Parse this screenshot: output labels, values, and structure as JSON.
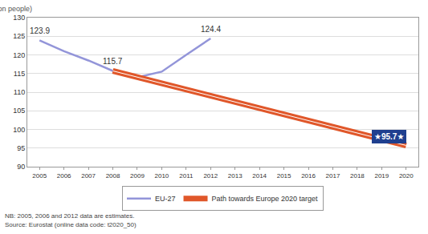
{
  "chart_data": {
    "type": "line",
    "y_label": "(million people)",
    "series": [
      {
        "name": "EU-27",
        "color": "#9395d9",
        "line_style": "solid",
        "x": [
          2005,
          2006,
          2007,
          2008,
          2009,
          2010,
          2011,
          2012
        ],
        "values": [
          123.9,
          121.0,
          118.5,
          115.7,
          114.0,
          115.5,
          120.0,
          124.4
        ]
      },
      {
        "name": "Path towards Europe 2020 target",
        "color": "#e0572a",
        "line_style": "double",
        "x": [
          2008,
          2020
        ],
        "values": [
          115.7,
          95.7
        ]
      }
    ],
    "annotations": [
      {
        "x": 2005,
        "y": 123.9,
        "text": "123.9"
      },
      {
        "x": 2008,
        "y": 115.7,
        "text": "115.7"
      },
      {
        "x": 2012,
        "y": 124.4,
        "text": "124.4"
      }
    ],
    "target": {
      "x": 2020,
      "y": 95.7,
      "text": "★95.7★",
      "color": "#1f3f8f"
    },
    "xlim": [
      2004.5,
      2020.5
    ],
    "xticks": [
      2005,
      2006,
      2007,
      2008,
      2009,
      2010,
      2011,
      2012,
      2013,
      2014,
      2015,
      2016,
      2017,
      2018,
      2019,
      2020
    ],
    "ylim": [
      90,
      130
    ],
    "yticks": [
      90,
      95,
      100,
      105,
      110,
      115,
      120,
      125,
      130
    ],
    "grid": true,
    "legend": "bottom",
    "note": "NB: 2005, 2006 and 2012 data are estimates.",
    "source": "Source: Eurostat (online data code: t2020_50)"
  }
}
